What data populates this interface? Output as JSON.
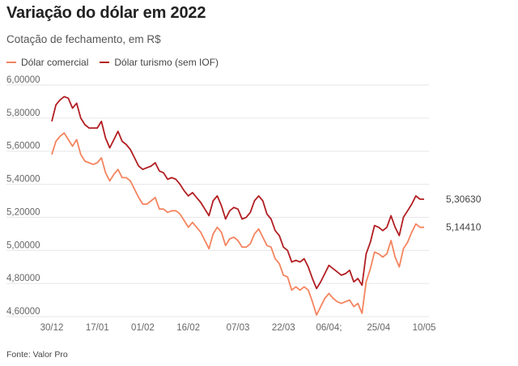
{
  "header": {
    "title": "Variação do dólar em 2022",
    "subtitle": "Cotação de fechamento, em R$"
  },
  "legend": [
    {
      "label": "Dólar comercial",
      "color": "#f4845f"
    },
    {
      "label": "Dólar turismo (sem IOF)",
      "color": "#b21e22"
    }
  ],
  "footer": {
    "source": "Fonte: Valor Pro"
  },
  "chart_data": {
    "type": "line",
    "title": "Variação do dólar em 2022",
    "subtitle": "Cotação de fechamento, em R$",
    "ylim": [
      4.6,
      6.0
    ],
    "y_ticks": [
      "4,60000",
      "4,80000",
      "5,00000",
      "5,20000",
      "5,40000",
      "5,60000",
      "5,80000",
      "6,00000"
    ],
    "x_ticks": [
      {
        "label": "30/12",
        "index": 0
      },
      {
        "label": "17/01",
        "index": 11
      },
      {
        "label": "01/02",
        "index": 22
      },
      {
        "label": "16/02",
        "index": 33
      },
      {
        "label": "07/03",
        "index": 45
      },
      {
        "label": "22/03",
        "index": 56
      },
      {
        "label": "06/04;",
        "index": 67
      },
      {
        "label": "25/04",
        "index": 79
      },
      {
        "label": "10/05",
        "index": 90
      }
    ],
    "grid": true,
    "legend_position": "top-left",
    "series": [
      {
        "name": "Dólar comercial",
        "color": "#f4845f",
        "end_label": "5,14410",
        "values": [
          5.58,
          5.66,
          5.69,
          5.71,
          5.67,
          5.63,
          5.67,
          5.58,
          5.54,
          5.53,
          5.52,
          5.53,
          5.56,
          5.47,
          5.42,
          5.46,
          5.49,
          5.44,
          5.44,
          5.42,
          5.37,
          5.32,
          5.28,
          5.28,
          5.3,
          5.32,
          5.25,
          5.25,
          5.23,
          5.24,
          5.24,
          5.22,
          5.18,
          5.14,
          5.17,
          5.14,
          5.11,
          5.06,
          5.01,
          5.1,
          5.14,
          5.11,
          5.03,
          5.07,
          5.08,
          5.06,
          5.02,
          5.02,
          5.04,
          5.1,
          5.13,
          5.08,
          5.03,
          5.02,
          4.95,
          4.92,
          4.85,
          4.84,
          4.76,
          4.78,
          4.76,
          4.78,
          4.76,
          4.69,
          4.61,
          4.66,
          4.71,
          4.74,
          4.71,
          4.69,
          4.68,
          4.69,
          4.7,
          4.66,
          4.68,
          4.62,
          4.81,
          4.89,
          4.99,
          4.98,
          4.96,
          4.98,
          5.06,
          4.96,
          4.9,
          5.01,
          5.05,
          5.11,
          5.16,
          5.14,
          5.14
        ]
      },
      {
        "name": "Dólar turismo (sem IOF)",
        "color": "#b21e22",
        "end_label": "5,30630",
        "values": [
          5.78,
          5.88,
          5.91,
          5.93,
          5.92,
          5.86,
          5.89,
          5.8,
          5.76,
          5.74,
          5.74,
          5.74,
          5.78,
          5.68,
          5.62,
          5.67,
          5.72,
          5.66,
          5.64,
          5.61,
          5.56,
          5.51,
          5.49,
          5.5,
          5.51,
          5.53,
          5.48,
          5.47,
          5.43,
          5.44,
          5.43,
          5.4,
          5.36,
          5.33,
          5.35,
          5.32,
          5.29,
          5.25,
          5.21,
          5.3,
          5.33,
          5.27,
          5.19,
          5.24,
          5.26,
          5.25,
          5.19,
          5.2,
          5.23,
          5.3,
          5.33,
          5.3,
          5.22,
          5.19,
          5.12,
          5.09,
          5.02,
          5.0,
          4.93,
          4.94,
          4.93,
          4.95,
          4.9,
          4.83,
          4.77,
          4.81,
          4.86,
          4.91,
          4.89,
          4.87,
          4.85,
          4.86,
          4.88,
          4.81,
          4.83,
          4.79,
          4.98,
          5.05,
          5.15,
          5.14,
          5.12,
          5.14,
          5.21,
          5.14,
          5.09,
          5.2,
          5.24,
          5.28,
          5.33,
          5.31,
          5.31
        ]
      }
    ]
  }
}
